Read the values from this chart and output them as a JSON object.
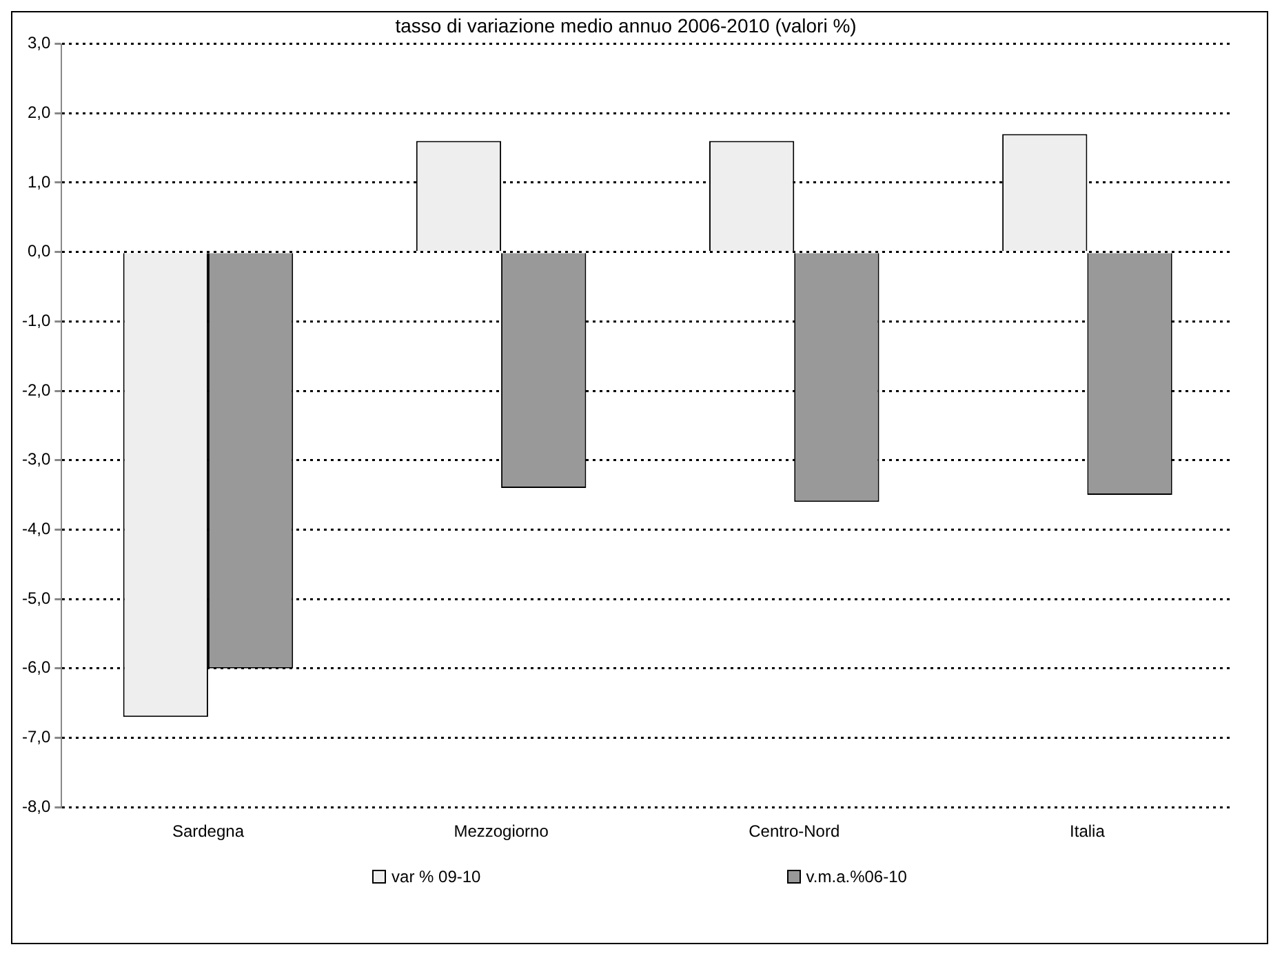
{
  "chart_data": {
    "type": "bar",
    "title": "tasso di variazione medio annuo 2006-2010 (valori %)",
    "categories": [
      "Sardegna",
      "Mezzogiorno",
      "Centro-Nord",
      "Italia"
    ],
    "series": [
      {
        "name": "var % 09-10",
        "color": "#eeeeee",
        "values": [
          -6.7,
          1.6,
          1.6,
          1.7
        ]
      },
      {
        "name": "v.m.a.%06-10",
        "color": "#999999",
        "values": [
          -6.0,
          -3.4,
          -3.6,
          -3.5
        ]
      }
    ],
    "ylim": [
      -8,
      3
    ],
    "yticks": [
      {
        "value": -8,
        "label": "-8,0"
      },
      {
        "value": -7,
        "label": "-7,0"
      },
      {
        "value": -6,
        "label": "-6,0"
      },
      {
        "value": -5,
        "label": "-5,0"
      },
      {
        "value": -4,
        "label": "-4,0"
      },
      {
        "value": -3,
        "label": "-3,0"
      },
      {
        "value": -2,
        "label": "-2,0"
      },
      {
        "value": -1,
        "label": "-1,0"
      },
      {
        "value": 0,
        "label": "0,0"
      },
      {
        "value": 1,
        "label": "1,0"
      },
      {
        "value": 2,
        "label": "2,0"
      },
      {
        "value": 3,
        "label": "3,0"
      }
    ],
    "grid": "y",
    "legend": "bottom"
  }
}
